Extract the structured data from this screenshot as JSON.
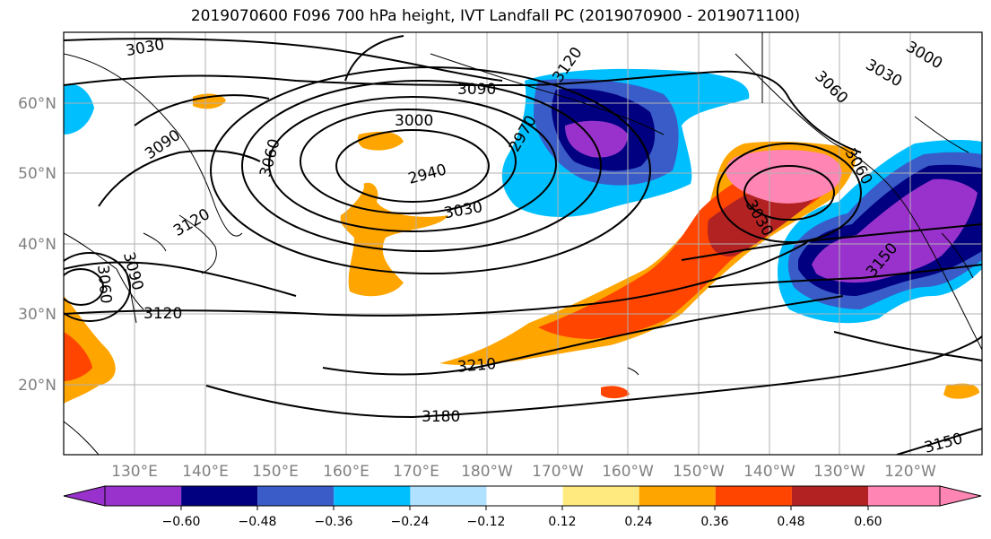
{
  "title": "2019070600 F096 700 hPa height, IVT Landfall PC (2019070900 - 2019071100)",
  "map": {
    "lat_labels": [
      "60°N",
      "50°N",
      "40°N",
      "30°N",
      "20°N"
    ],
    "lon_labels": [
      "130°E",
      "140°E",
      "150°E",
      "160°E",
      "170°E",
      "180°W",
      "170°W",
      "160°W",
      "150°W",
      "140°W",
      "130°W",
      "120°W"
    ],
    "contour_labels": [
      "3030",
      "3090",
      "3000",
      "2970",
      "2940",
      "3030",
      "3060",
      "3120",
      "3090",
      "3060",
      "3030",
      "3000",
      "3090",
      "3060",
      "3120",
      "3120",
      "3210",
      "3180",
      "3150",
      "3030",
      "3060",
      "3150"
    ]
  },
  "colorbar": {
    "ticks": [
      "−0.60",
      "−0.48",
      "−0.36",
      "−0.24",
      "−0.12",
      "0.12",
      "0.24",
      "0.36",
      "0.48",
      "0.60"
    ],
    "colors": [
      "#9932CC",
      "#000080",
      "#3A5CC8",
      "#00BFFF",
      "#B0E2FF",
      "#FFFFFF",
      "#FFEA80",
      "#FFA500",
      "#FF4500",
      "#B22222",
      "#FF86B4"
    ]
  }
}
